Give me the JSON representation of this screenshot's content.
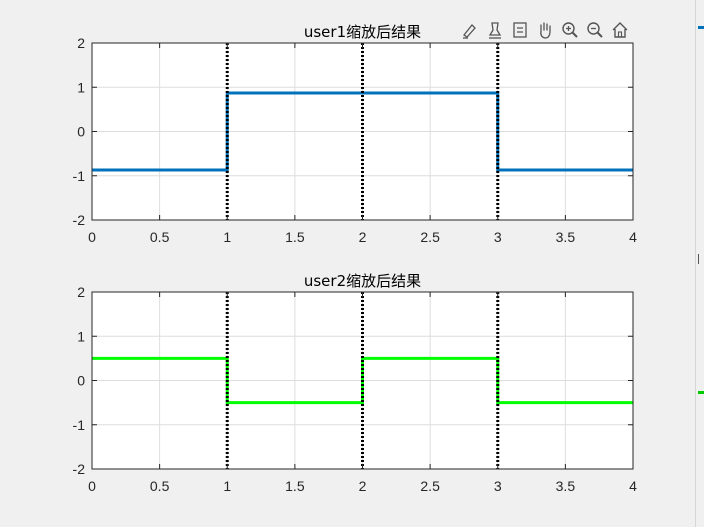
{
  "figure": {
    "background": "#f0f0f0",
    "axes_background": "#ffffff",
    "grid_color": "#dedede"
  },
  "toolbar": {
    "icons": [
      "brush-icon",
      "data-tip-icon",
      "legend-icon",
      "pan-hand-icon",
      "zoom-in-icon",
      "zoom-out-icon",
      "home-icon"
    ]
  },
  "chart_data": [
    {
      "type": "line",
      "title": "user1缩放后结果",
      "xlabel": "",
      "ylabel": "",
      "xlim": [
        0,
        4
      ],
      "ylim": [
        -2,
        2
      ],
      "xticks": [
        0,
        0.5,
        1,
        1.5,
        2,
        2.5,
        3,
        3.5,
        4
      ],
      "xtick_labels": [
        "0",
        "0.5",
        "1",
        "1.5",
        "2",
        "2.5",
        "3",
        "3.5",
        "4"
      ],
      "yticks": [
        -2,
        -1,
        0,
        1,
        2
      ],
      "ytick_labels": [
        "-2",
        "-1",
        "0",
        "1",
        "2"
      ],
      "grid": true,
      "series": [
        {
          "color": "#0072bd",
          "step": true,
          "x": [
            0,
            1,
            1,
            2,
            2,
            3,
            3,
            4
          ],
          "y": [
            -0.87,
            -0.87,
            0.87,
            0.87,
            0.87,
            0.87,
            -0.87,
            -0.87
          ]
        }
      ],
      "vlines": {
        "x": [
          1,
          2,
          3
        ],
        "color": "#000000",
        "style": "dotted"
      }
    },
    {
      "type": "line",
      "title": "user2缩放后结果",
      "xlabel": "",
      "ylabel": "",
      "xlim": [
        0,
        4
      ],
      "ylim": [
        -2,
        2
      ],
      "xticks": [
        0,
        0.5,
        1,
        1.5,
        2,
        2.5,
        3,
        3.5,
        4
      ],
      "xtick_labels": [
        "0",
        "0.5",
        "1",
        "1.5",
        "2",
        "2.5",
        "3",
        "3.5",
        "4"
      ],
      "yticks": [
        -2,
        -1,
        0,
        1,
        2
      ],
      "ytick_labels": [
        "-2",
        "-1",
        "0",
        "1",
        "2"
      ],
      "grid": true,
      "series": [
        {
          "color": "#00ff00",
          "step": true,
          "x": [
            0,
            1,
            1,
            2,
            2,
            3,
            3,
            4
          ],
          "y": [
            0.5,
            0.5,
            -0.5,
            -0.5,
            0.5,
            0.5,
            -0.5,
            -0.5
          ]
        }
      ],
      "vlines": {
        "x": [
          1,
          2,
          3
        ],
        "color": "#000000",
        "style": "dotted"
      }
    }
  ]
}
